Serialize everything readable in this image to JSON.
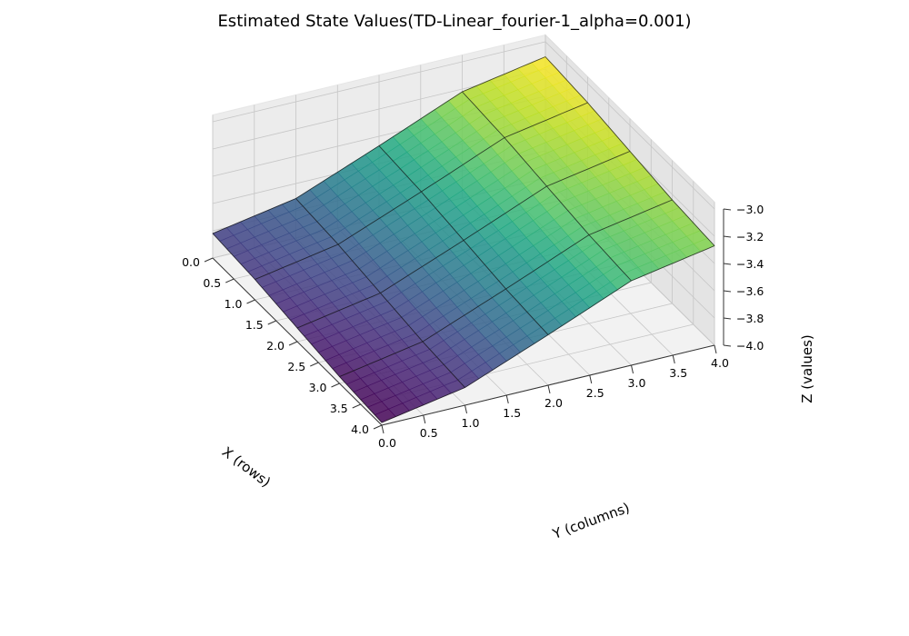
{
  "chart_data": {
    "type": "surface",
    "title": "Estimated State Values(TD-Linear_fourier-1_alpha=0.001)",
    "xlabel": "X (rows)",
    "ylabel": "Y (columns)",
    "zlabel": "Z (values)",
    "xlim": [
      0,
      4
    ],
    "ylim": [
      0,
      4
    ],
    "zlim": [
      -4.0,
      -3.0
    ],
    "xticks": [
      "0.0",
      "0.5",
      "1.0",
      "1.5",
      "2.0",
      "2.5",
      "3.0",
      "3.5",
      "4.0"
    ],
    "yticks": [
      "0.0",
      "0.5",
      "1.0",
      "1.5",
      "2.0",
      "2.5",
      "3.0",
      "3.5",
      "4.0"
    ],
    "zticks": [
      "−3.0",
      "−3.2",
      "−3.4",
      "−3.6",
      "−3.8",
      "−4.0"
    ],
    "colormap": "viridis",
    "grid": true,
    "surface": {
      "x": [
        0,
        1,
        2,
        3,
        4
      ],
      "y": [
        0,
        1,
        2,
        3,
        4
      ],
      "z": [
        [
          -3.82,
          -3.71,
          -3.47,
          -3.22,
          -3.11
        ],
        [
          -3.85,
          -3.74,
          -3.5,
          -3.25,
          -3.14
        ],
        [
          -3.9,
          -3.79,
          -3.55,
          -3.3,
          -3.19
        ],
        [
          -3.95,
          -3.84,
          -3.6,
          -3.35,
          -3.24
        ],
        [
          -3.98,
          -3.87,
          -3.63,
          -3.38,
          -3.27
        ]
      ]
    }
  }
}
